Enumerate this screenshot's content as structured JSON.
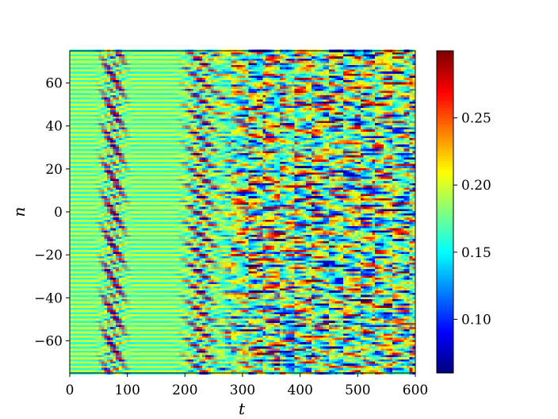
{
  "chart_data": {
    "type": "heatmap",
    "title": "",
    "xlabel": "t",
    "ylabel": "n",
    "xlim": [
      0,
      600
    ],
    "ylim": [
      -75,
      75
    ],
    "x_ticks": [
      0,
      100,
      200,
      300,
      400,
      500,
      600
    ],
    "x_tick_labels": [
      "0",
      "100",
      "200",
      "300",
      "400",
      "500",
      "600"
    ],
    "y_ticks": [
      -60,
      -40,
      -20,
      0,
      20,
      40,
      60
    ],
    "y_tick_labels": [
      "−60",
      "−40",
      "−20",
      "0",
      "20",
      "40",
      "60"
    ],
    "colormap": "jet",
    "colorbar": {
      "vmin": 0.06,
      "vmax": 0.3,
      "ticks": [
        0.1,
        0.15,
        0.2,
        0.25
      ],
      "tick_labels": [
        "0.10",
        "0.15",
        "0.20",
        "0.25"
      ]
    },
    "n_range": [
      -75,
      75
    ],
    "t_range": [
      0,
      600
    ],
    "features": [
      {
        "t_start": 0,
        "t_end": 50,
        "description": "near-uniform background",
        "value": 0.18
      },
      {
        "t_start": 50,
        "t_end": 100,
        "description": "first band of alternating high/low values",
        "low": 0.06,
        "high": 0.3
      },
      {
        "t_start": 100,
        "t_end": 190,
        "description": "near-uniform background",
        "value": 0.18
      },
      {
        "t_start": 190,
        "t_end": 260,
        "description": "second band of alternating high/low values",
        "low": 0.06,
        "high": 0.3
      },
      {
        "t_start": 260,
        "t_end": 600,
        "description": "irregular pattern",
        "low": 0.06,
        "high": 0.3
      }
    ]
  }
}
